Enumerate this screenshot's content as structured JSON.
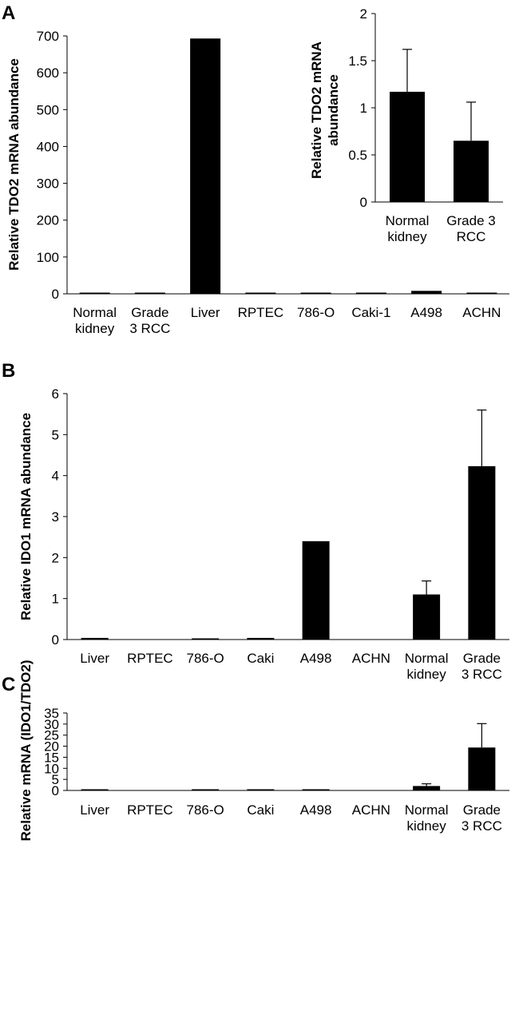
{
  "chart_data": [
    {
      "panel": "A",
      "type": "bar",
      "ylabel": "Relative TDO2 mRNA abundance",
      "ylim": [
        0,
        700
      ],
      "yticks": [
        0,
        100,
        200,
        300,
        400,
        500,
        600,
        700
      ],
      "categories": [
        [
          "Normal",
          "kidney"
        ],
        [
          "Grade",
          "3 RCC"
        ],
        [
          "Liver"
        ],
        [
          "RPTEC"
        ],
        [
          "786-O"
        ],
        [
          "Caki-1"
        ],
        [
          "A498"
        ],
        [
          "ACHN"
        ]
      ],
      "values": [
        1.2,
        0.7,
        693,
        1,
        0.5,
        0.5,
        8,
        0.5
      ],
      "grid": false
    },
    {
      "panel": "A-inset",
      "type": "bar",
      "ylabel": [
        "Relative TDO2 mRNA",
        "abundance"
      ],
      "ylim": [
        0,
        2
      ],
      "yticks": [
        "0",
        "0.5",
        "1",
        "1.5",
        "2"
      ],
      "categories": [
        [
          "Normal",
          "kidney"
        ],
        [
          "Grade 3",
          "RCC"
        ]
      ],
      "values": [
        1.17,
        0.65
      ],
      "errors": [
        0.45,
        0.41
      ],
      "grid": false
    },
    {
      "panel": "B",
      "type": "bar",
      "ylabel": "Relative IDO1 mRNA abundance",
      "ylim": [
        0,
        6
      ],
      "yticks": [
        0,
        1,
        2,
        3,
        4,
        5,
        6
      ],
      "categories": [
        [
          "Liver"
        ],
        [
          "RPTEC"
        ],
        [
          "786-O"
        ],
        [
          "Caki"
        ],
        [
          "A498"
        ],
        [
          "ACHN"
        ],
        [
          "Normal",
          "kidney"
        ],
        [
          "Grade",
          "3 RCC"
        ]
      ],
      "values": [
        0.04,
        0,
        0.01,
        0.04,
        2.4,
        0,
        1.1,
        4.23
      ],
      "errors": [
        0,
        0,
        0,
        0,
        0,
        0,
        0.33,
        1.37
      ],
      "grid": false
    },
    {
      "panel": "C",
      "type": "bar",
      "ylabel": "Relative mRNA (IDO1/TDO2)",
      "ylim": [
        0,
        35
      ],
      "yticks": [
        0,
        5,
        10,
        15,
        20,
        25,
        30,
        35
      ],
      "categories": [
        [
          "Liver"
        ],
        [
          "RPTEC"
        ],
        [
          "786-O"
        ],
        [
          "Caki"
        ],
        [
          "A498"
        ],
        [
          "ACHN"
        ],
        [
          "Normal",
          "kidney"
        ],
        [
          "Grade",
          "3 RCC"
        ]
      ],
      "values": [
        0.1,
        0,
        0.1,
        0.1,
        0.1,
        0,
        2.0,
        19.4
      ],
      "errors": [
        0,
        0,
        0,
        0,
        0,
        0,
        1.0,
        10.8
      ],
      "grid": false
    }
  ]
}
